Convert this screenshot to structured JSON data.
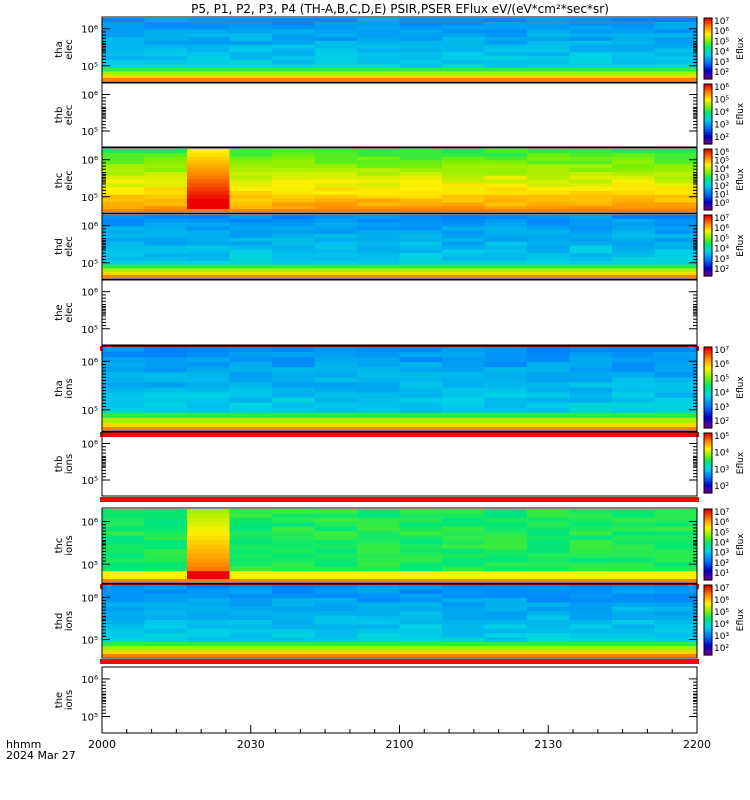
{
  "title": "P5, P1, P2, P3, P4 (TH-A,B,C,D,E) PSIR,PSER EFlux eV/(eV*cm²*sec*sr)",
  "footer": {
    "label": "hhmm",
    "date": "2024 Mar 27"
  },
  "colorbar_label": "Eflux",
  "chart_data": {
    "type": "heatmap",
    "x_ticks": [
      "2000",
      "2030",
      "2100",
      "2130",
      "2200"
    ],
    "x_range": [
      "2000",
      "2200"
    ],
    "panels": [
      {
        "ylabel": [
          "tha",
          "elec"
        ],
        "y_ticks": [
          "10⁶",
          "10⁵"
        ],
        "has_data": true,
        "pattern": "blue",
        "colorbar": [
          "10⁷",
          "10⁶",
          "10⁵",
          "10⁴",
          "10³",
          "10²"
        ]
      },
      {
        "ylabel": [
          "thb",
          "elec"
        ],
        "y_ticks": [
          "10⁶",
          "10⁵"
        ],
        "has_data": false,
        "pattern": null,
        "colorbar": [
          "10⁶",
          "10⁵",
          "10⁴",
          "10³",
          "10²"
        ]
      },
      {
        "ylabel": [
          "thc",
          "elec"
        ],
        "y_ticks": [
          "10⁶",
          "10⁵"
        ],
        "has_data": true,
        "pattern": "yellow",
        "colorbar": [
          "10⁶",
          "10⁵",
          "10⁴",
          "10³",
          "10²",
          "10¹",
          "10⁰"
        ]
      },
      {
        "ylabel": [
          "thd",
          "elec"
        ],
        "y_ticks": [
          "10⁶",
          "10⁵"
        ],
        "has_data": true,
        "pattern": "blue",
        "colorbar": [
          "10⁷",
          "10⁶",
          "10⁵",
          "10⁴",
          "10³",
          "10²"
        ]
      },
      {
        "ylabel": [
          "the",
          "elec"
        ],
        "y_ticks": [
          "10⁶",
          "10⁵"
        ],
        "has_data": false,
        "pattern": null,
        "colorbar": null
      },
      {
        "ylabel": [
          "tha",
          "ions"
        ],
        "y_ticks": [
          "10⁶",
          "10⁵"
        ],
        "has_data": true,
        "pattern": "blue",
        "colorbar": [
          "10⁷",
          "10⁶",
          "10⁵",
          "10⁴",
          "10³",
          "10²"
        ]
      },
      {
        "ylabel": [
          "thb",
          "ions"
        ],
        "y_ticks": [
          "10⁶",
          "10⁵"
        ],
        "has_data": false,
        "pattern": null,
        "colorbar": [
          "10⁵",
          "10⁴",
          "10³",
          "10²"
        ]
      },
      {
        "ylabel": [
          "thc",
          "ions"
        ],
        "y_ticks": [
          "10⁶",
          "10⁵"
        ],
        "has_data": true,
        "pattern": "green",
        "colorbar": [
          "10⁷",
          "10⁶",
          "10⁵",
          "10⁴",
          "10³",
          "10²",
          "10¹"
        ]
      },
      {
        "ylabel": [
          "thd",
          "ions"
        ],
        "y_ticks": [
          "10⁶",
          "10⁵"
        ],
        "has_data": true,
        "pattern": "blue",
        "colorbar": [
          "10⁷",
          "10⁶",
          "10⁵",
          "10⁴",
          "10³",
          "10²"
        ]
      },
      {
        "ylabel": [
          "the",
          "ions"
        ],
        "y_ticks": [
          "10⁶",
          "10⁵"
        ],
        "has_data": false,
        "pattern": null,
        "colorbar": null
      }
    ]
  }
}
